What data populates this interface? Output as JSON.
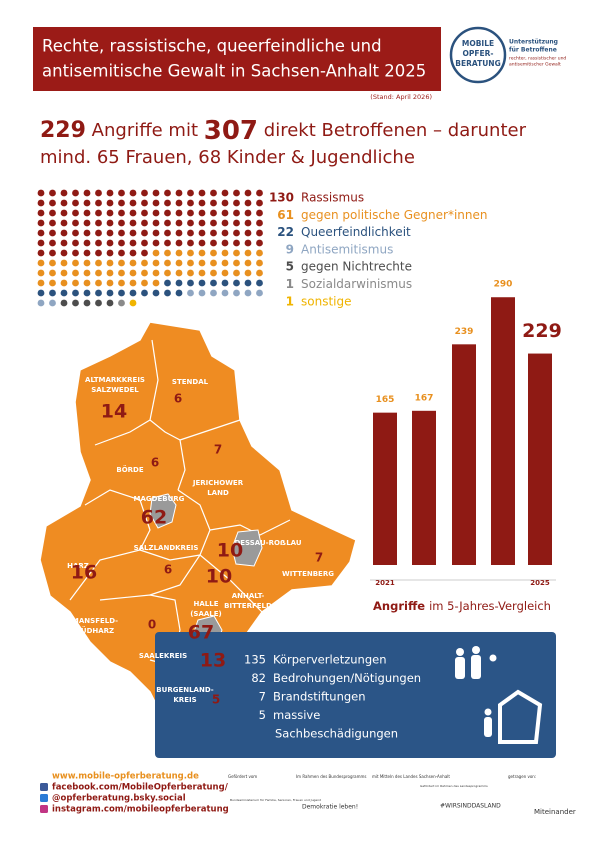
{
  "header": {
    "title_lines": [
      "Rechte, rassistische, queerfeindliche und",
      "antisemitische Gewalt in Sachsen-Anhalt 2025"
    ],
    "stand": "(Stand: April 2026)",
    "logo": {
      "name_lines": [
        "MOBILE",
        "OPFER-",
        "BERATUNG"
      ],
      "claim_lines": [
        "Unterstützung",
        "für Betroffene",
        "rechter, rassistischer und",
        "antisemitischer Gewalt"
      ]
    }
  },
  "headline": {
    "attacks": 229,
    "text1": "Angriffe mit",
    "affected": 307,
    "text2": "direkt Betroffenen – darunter",
    "line2": "mind. 65 Frauen, 68 Kinder & Jugendliche"
  },
  "motives": {
    "dots_per_row": 20,
    "items": [
      {
        "count": 130,
        "label": "Rassismus",
        "color": "#8f1a14"
      },
      {
        "count": 61,
        "label": "gegen politische Gegner*innen",
        "color": "#e8901f"
      },
      {
        "count": 22,
        "label": "Queerfeindlichkeit",
        "color": "#2b527e"
      },
      {
        "count": 9,
        "label": "Antisemitismus",
        "color": "#8fa6c2"
      },
      {
        "count": 5,
        "label": "gegen Nichtrechte",
        "color": "#4d4d4d"
      },
      {
        "count": 1,
        "label": "Sozialdarwinismus",
        "color": "#8a8a8a"
      },
      {
        "count": 1,
        "label": "sonstige",
        "color": "#f0b400"
      }
    ]
  },
  "map": {
    "regions": [
      {
        "name": [
          "ALTMARKKREIS",
          "SALZWEDEL"
        ],
        "value": 14
      },
      {
        "name": [
          "STENDAL"
        ],
        "value": 6
      },
      {
        "name": [
          "BÖRDE"
        ],
        "value": 6
      },
      {
        "name": [
          "JERICHOWER",
          "LAND"
        ],
        "value": 7
      },
      {
        "name": [
          "MAGDEBURG"
        ],
        "value": 62
      },
      {
        "name": [
          "SALZLANDKREIS"
        ],
        "value": 6
      },
      {
        "name": [
          "HARZ"
        ],
        "value": 16
      },
      {
        "name": [
          "DESSAU-ROẞLAU"
        ],
        "value": 10
      },
      {
        "name": [
          "WITTENBERG"
        ],
        "value": 7
      },
      {
        "name": [
          "ANHALT-",
          "BITTERFELD"
        ],
        "value": 10
      },
      {
        "name": [
          "MANSFELD-",
          "SÜDHARZ"
        ],
        "value": 0
      },
      {
        "name": [
          "HALLE",
          "(SAALE)"
        ],
        "value": 67
      },
      {
        "name": [
          "SAALEKREIS"
        ],
        "value": 13
      },
      {
        "name": [
          "BURGENLAND-",
          "KREIS"
        ],
        "value": 5
      }
    ]
  },
  "chart_data": {
    "type": "bar",
    "categories": [
      "2021",
      null,
      null,
      null,
      "2025"
    ],
    "values": [
      165,
      167,
      239,
      290,
      229
    ],
    "color": "#8f1a14",
    "ylim": [
      0,
      300
    ],
    "caption_bold": "Angriffe",
    "caption": "im 5-Jahres-Vergleich"
  },
  "attack_types": [
    {
      "count": 135,
      "label": [
        "Körperverletzungen"
      ]
    },
    {
      "count": 82,
      "label": [
        "Bedrohungen/Nötigungen"
      ]
    },
    {
      "count": 7,
      "label": [
        "Brandstiftungen"
      ]
    },
    {
      "count": 5,
      "label": [
        "massive",
        "Sachbeschädigungen"
      ]
    }
  ],
  "footer": {
    "links": [
      "www.mobile-opferberatung.de",
      "facebook.com/MobileOpferberatung/",
      "@opferberatung.bsky.social",
      "instagram.com/mobileopferberatung"
    ],
    "sponsors": [
      "Gefördert vom",
      "Bundesministerium für Familie, Senioren, Frauen und Jugend",
      "Im Rahmen des Bundesprogramms",
      "Demokratie leben!",
      "mit Mitteln des Landes Sachsen-Anhalt",
      "Gefördert im Rahmen des Landesprogramms",
      "#WIRSINDDASLAND",
      "getragen von:",
      "Miteinander"
    ]
  }
}
